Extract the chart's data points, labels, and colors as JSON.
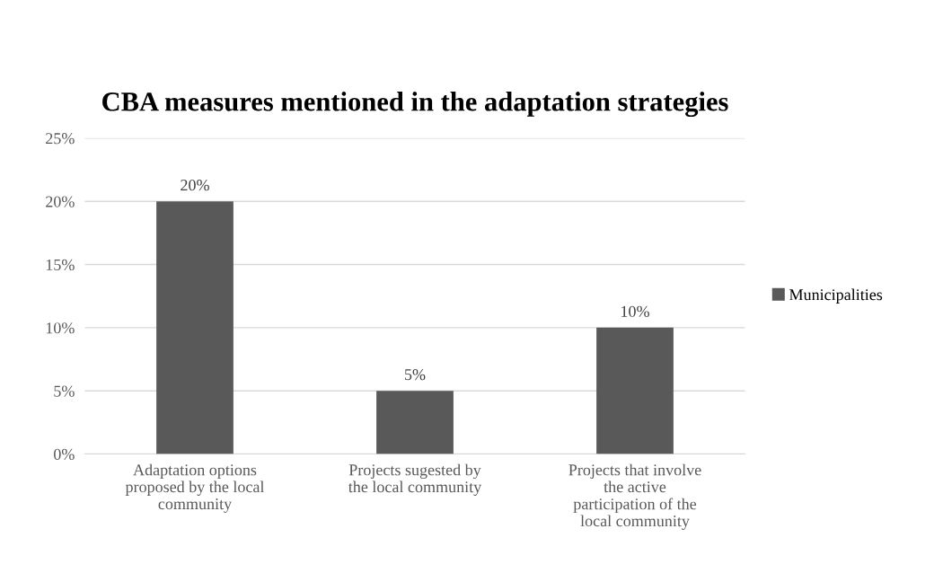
{
  "chart_data": {
    "type": "bar",
    "title": "CBA measures mentioned in the adaptation strategies",
    "categories": [
      "Adaptation options proposed by the local community",
      "Projects sugested by the local community",
      "Projects that involve the active participation of the local community"
    ],
    "series": [
      {
        "name": "Municipalities",
        "color": "#595959",
        "values": [
          20,
          5,
          10
        ],
        "value_labels": [
          "20%",
          "5%",
          "10%"
        ]
      }
    ],
    "ylim": [
      0,
      25
    ],
    "yticks": [
      {
        "value": 0,
        "label": "0%"
      },
      {
        "value": 5,
        "label": "5%"
      },
      {
        "value": 10,
        "label": "10%"
      },
      {
        "value": 15,
        "label": "15%"
      },
      {
        "value": 20,
        "label": "20%"
      },
      {
        "value": 25,
        "label": "25%"
      }
    ],
    "grid": "y",
    "legend": "right"
  }
}
